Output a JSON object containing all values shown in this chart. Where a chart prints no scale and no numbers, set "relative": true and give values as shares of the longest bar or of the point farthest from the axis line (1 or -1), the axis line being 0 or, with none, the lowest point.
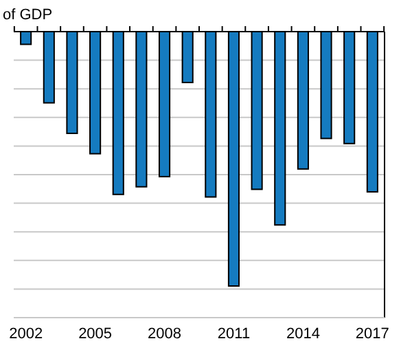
{
  "chart_data": {
    "type": "bar",
    "title": "of GDP",
    "relative": true,
    "grid": "y",
    "color": "#157bc0",
    "categories": [
      "2002",
      null,
      null,
      "2005",
      null,
      null,
      "2008",
      null,
      null,
      "2011",
      null,
      null,
      "2014",
      null,
      null,
      "2017"
    ],
    "values": [
      -0.05,
      -0.28,
      -0.4,
      -0.48,
      -0.64,
      -0.61,
      -0.57,
      -0.2,
      -0.65,
      -1,
      -0.62,
      -0.76,
      -0.54,
      -0.42,
      -0.44,
      -0.63
    ]
  }
}
